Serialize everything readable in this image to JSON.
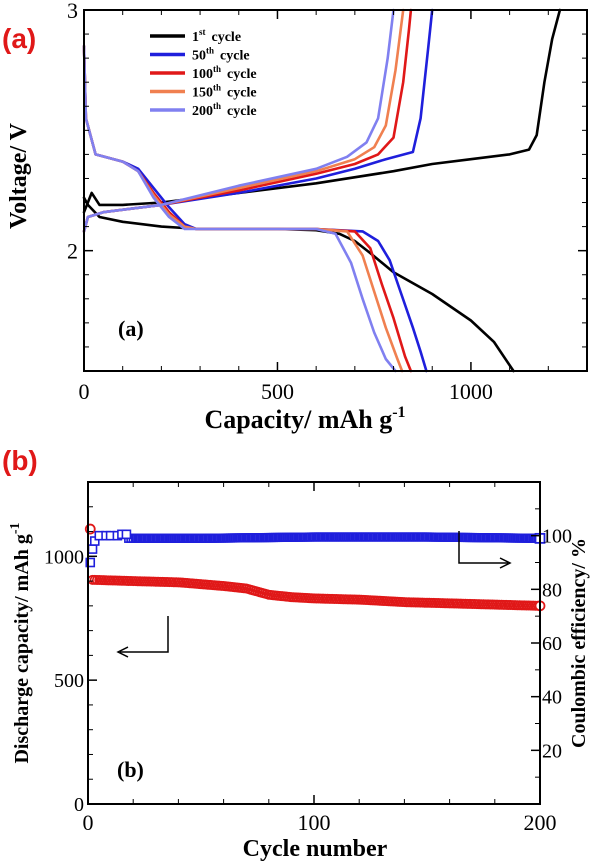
{
  "panel_tags": {
    "a": "(a)",
    "b": "(b)"
  },
  "chart_data": [
    {
      "type": "line",
      "inner_label": "(a)",
      "xlabel": "Capacity/ mAh g",
      "xlabel_sup": "-1",
      "ylabel": "Voltage/ V",
      "xlim": [
        0,
        1300
      ],
      "ylim": [
        1.5,
        3.0
      ],
      "x_ticks": [
        "0",
        "500",
        "1000"
      ],
      "y_ticks": [
        "2",
        "3"
      ],
      "legend_position": "top-left",
      "series": [
        {
          "name": "1st cycle",
          "name_base": "1",
          "name_sup": "st",
          "name_rest": "cycle",
          "color": "#000000",
          "discharge": [
            [
              0,
              2.22
            ],
            [
              10,
              2.19
            ],
            [
              40,
              2.14
            ],
            [
              100,
              2.12
            ],
            [
              200,
              2.1
            ],
            [
              300,
              2.09
            ],
            [
              400,
              2.09
            ],
            [
              500,
              2.09
            ],
            [
              600,
              2.085
            ],
            [
              660,
              2.07
            ],
            [
              700,
              2.04
            ],
            [
              740,
              1.99
            ],
            [
              800,
              1.91
            ],
            [
              900,
              1.82
            ],
            [
              1000,
              1.71
            ],
            [
              1060,
              1.62
            ],
            [
              1110,
              1.5
            ]
          ],
          "charge": [
            [
              0,
              2.16
            ],
            [
              20,
              2.24
            ],
            [
              40,
              2.19
            ],
            [
              100,
              2.19
            ],
            [
              200,
              2.2
            ],
            [
              400,
              2.24
            ],
            [
              600,
              2.28
            ],
            [
              800,
              2.33
            ],
            [
              900,
              2.36
            ],
            [
              1000,
              2.38
            ],
            [
              1100,
              2.4
            ],
            [
              1150,
              2.42
            ],
            [
              1170,
              2.48
            ],
            [
              1190,
              2.7
            ],
            [
              1210,
              2.88
            ],
            [
              1230,
              3.0
            ]
          ]
        },
        {
          "name": "50th cycle",
          "name_base": "50",
          "name_sup": "th",
          "name_rest": "cycle",
          "color": "#1f1fdc",
          "discharge": [
            [
              0,
              2.85
            ],
            [
              5,
              2.55
            ],
            [
              30,
              2.4
            ],
            [
              100,
              2.37
            ],
            [
              140,
              2.34
            ],
            [
              180,
              2.26
            ],
            [
              220,
              2.18
            ],
            [
              260,
              2.11
            ],
            [
              290,
              2.09
            ],
            [
              400,
              2.09
            ],
            [
              600,
              2.09
            ],
            [
              720,
              2.08
            ],
            [
              760,
              2.04
            ],
            [
              790,
              1.96
            ],
            [
              820,
              1.82
            ],
            [
              850,
              1.68
            ],
            [
              870,
              1.58
            ],
            [
              885,
              1.5
            ]
          ],
          "charge": [
            [
              0,
              2.08
            ],
            [
              10,
              2.14
            ],
            [
              50,
              2.16
            ],
            [
              200,
              2.19
            ],
            [
              400,
              2.24
            ],
            [
              600,
              2.3
            ],
            [
              700,
              2.34
            ],
            [
              780,
              2.38
            ],
            [
              850,
              2.41
            ],
            [
              870,
              2.55
            ],
            [
              890,
              2.85
            ],
            [
              900,
              3.0
            ]
          ]
        },
        {
          "name": "100th cycle",
          "name_base": "100",
          "name_sup": "th",
          "name_rest": "cycle",
          "color": "#e01818",
          "discharge": [
            [
              0,
              2.85
            ],
            [
              5,
              2.55
            ],
            [
              30,
              2.4
            ],
            [
              100,
              2.37
            ],
            [
              140,
              2.33
            ],
            [
              180,
              2.24
            ],
            [
              220,
              2.16
            ],
            [
              260,
              2.1
            ],
            [
              290,
              2.09
            ],
            [
              400,
              2.09
            ],
            [
              600,
              2.09
            ],
            [
              700,
              2.08
            ],
            [
              740,
              2.01
            ],
            [
              770,
              1.86
            ],
            [
              800,
              1.72
            ],
            [
              830,
              1.56
            ],
            [
              845,
              1.5
            ]
          ],
          "charge": [
            [
              0,
              2.08
            ],
            [
              10,
              2.14
            ],
            [
              50,
              2.16
            ],
            [
              200,
              2.19
            ],
            [
              400,
              2.25
            ],
            [
              600,
              2.32
            ],
            [
              700,
              2.36
            ],
            [
              760,
              2.4
            ],
            [
              800,
              2.47
            ],
            [
              825,
              2.7
            ],
            [
              840,
              2.92
            ],
            [
              845,
              3.0
            ]
          ]
        },
        {
          "name": "150th cycle",
          "name_base": "150",
          "name_sup": "th",
          "name_rest": "cycle",
          "color": "#f08050",
          "discharge": [
            [
              0,
              2.85
            ],
            [
              5,
              2.55
            ],
            [
              30,
              2.4
            ],
            [
              100,
              2.37
            ],
            [
              140,
              2.33
            ],
            [
              180,
              2.23
            ],
            [
              220,
              2.15
            ],
            [
              260,
              2.1
            ],
            [
              290,
              2.09
            ],
            [
              400,
              2.09
            ],
            [
              600,
              2.09
            ],
            [
              680,
              2.08
            ],
            [
              720,
              1.98
            ],
            [
              750,
              1.83
            ],
            [
              780,
              1.68
            ],
            [
              810,
              1.55
            ],
            [
              822,
              1.5
            ]
          ],
          "charge": [
            [
              0,
              2.08
            ],
            [
              10,
              2.14
            ],
            [
              50,
              2.16
            ],
            [
              200,
              2.19
            ],
            [
              400,
              2.26
            ],
            [
              600,
              2.33
            ],
            [
              700,
              2.38
            ],
            [
              750,
              2.43
            ],
            [
              780,
              2.52
            ],
            [
              805,
              2.75
            ],
            [
              825,
              3.0
            ]
          ]
        },
        {
          "name": "200th cycle",
          "name_base": "200",
          "name_sup": "th",
          "name_rest": "cycle",
          "color": "#8080f0",
          "discharge": [
            [
              0,
              2.85
            ],
            [
              5,
              2.55
            ],
            [
              30,
              2.4
            ],
            [
              100,
              2.37
            ],
            [
              140,
              2.33
            ],
            [
              180,
              2.22
            ],
            [
              220,
              2.14
            ],
            [
              260,
              2.09
            ],
            [
              290,
              2.09
            ],
            [
              400,
              2.09
            ],
            [
              600,
              2.09
            ],
            [
              650,
              2.07
            ],
            [
              690,
              1.95
            ],
            [
              720,
              1.8
            ],
            [
              750,
              1.66
            ],
            [
              780,
              1.55
            ],
            [
              805,
              1.5
            ]
          ],
          "charge": [
            [
              0,
              2.08
            ],
            [
              10,
              2.14
            ],
            [
              50,
              2.16
            ],
            [
              200,
              2.19
            ],
            [
              400,
              2.27
            ],
            [
              600,
              2.34
            ],
            [
              680,
              2.39
            ],
            [
              730,
              2.45
            ],
            [
              760,
              2.55
            ],
            [
              785,
              2.8
            ],
            [
              800,
              3.0
            ]
          ]
        }
      ]
    },
    {
      "type": "scatter",
      "inner_label": "(b)",
      "xlabel": "Cycle number",
      "ylabel_left": "Discharge capacity/ mAh g",
      "ylabel_left_sup": "-1",
      "ylabel_right": "Coulombic efficiency/ %",
      "xlim": [
        0,
        200
      ],
      "ylim_left": [
        0,
        1300
      ],
      "ylim_right": [
        0,
        120
      ],
      "x_ticks": [
        "0",
        "100",
        "200"
      ],
      "y_left_ticks": [
        "0",
        "500",
        "1000"
      ],
      "y_right_ticks": [
        "20",
        "40",
        "60",
        "80",
        "100"
      ],
      "series": [
        {
          "name": "Discharge capacity",
          "axis": "left",
          "marker": "circle",
          "color": "#e01818",
          "first_point": [
            1,
            1110
          ],
          "trend": [
            [
              2,
              905
            ],
            [
              20,
              900
            ],
            [
              40,
              895
            ],
            [
              60,
              880
            ],
            [
              70,
              870
            ],
            [
              80,
              845
            ],
            [
              90,
              835
            ],
            [
              100,
              830
            ],
            [
              120,
              825
            ],
            [
              140,
              815
            ],
            [
              160,
              810
            ],
            [
              180,
              805
            ],
            [
              200,
              800
            ]
          ]
        },
        {
          "name": "Coulombic efficiency",
          "axis": "right",
          "marker": "square",
          "color": "#1f1fdc",
          "first_points": [
            [
              1,
              90
            ],
            [
              2,
              95
            ],
            [
              3,
              98
            ],
            [
              5,
              100
            ],
            [
              8,
              100
            ],
            [
              10,
              100
            ],
            [
              13,
              100
            ],
            [
              15,
              100.5
            ],
            [
              17,
              100.5
            ]
          ],
          "trend": [
            [
              18,
              99
            ],
            [
              50,
              99
            ],
            [
              100,
              99.5
            ],
            [
              150,
              99.5
            ],
            [
              200,
              99
            ]
          ]
        }
      ]
    }
  ]
}
